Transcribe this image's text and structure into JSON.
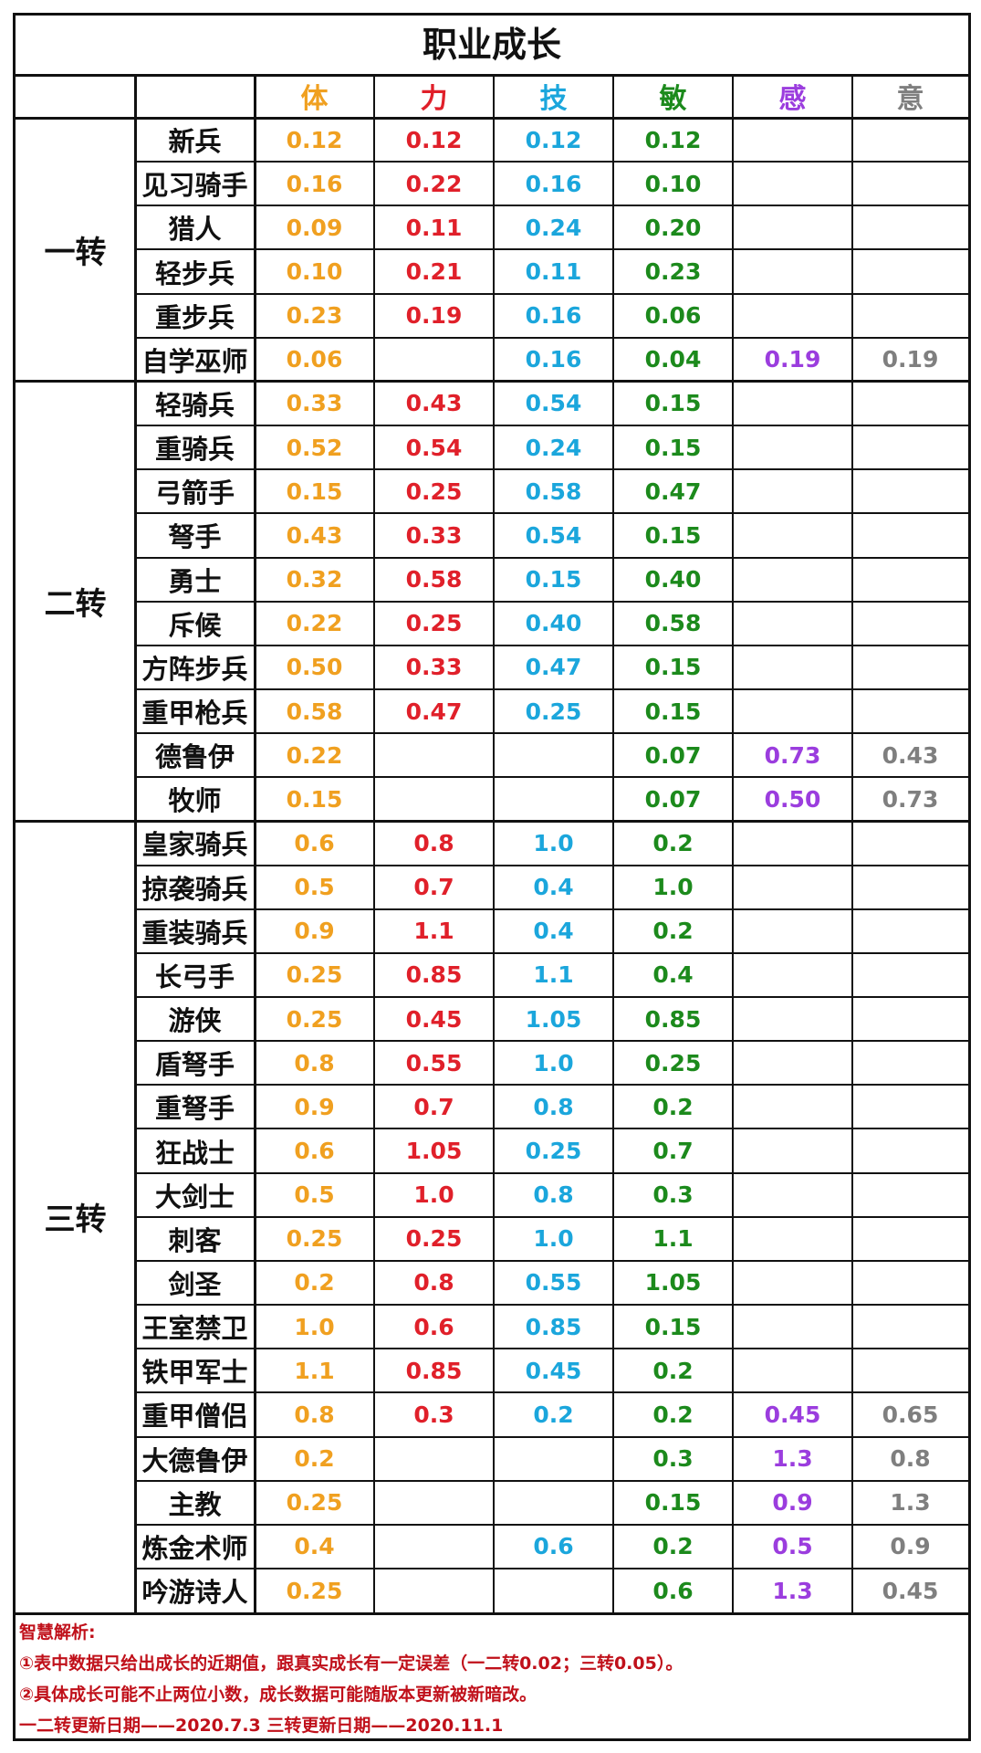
{
  "title": "职业成长",
  "columns": [
    {
      "label": "体",
      "color": "#f0a020"
    },
    {
      "label": "力",
      "color": "#e0202a"
    },
    {
      "label": "技",
      "color": "#1ba6dc"
    },
    {
      "label": "敏",
      "color": "#1c8a1c"
    },
    {
      "label": "感",
      "color": "#9b3dde"
    },
    {
      "label": "意",
      "color": "#7f7f7f"
    }
  ],
  "groups": [
    {
      "name": "一转",
      "rows": [
        {
          "job": "新兵",
          "values": [
            "0.12",
            "0.12",
            "0.12",
            "0.12",
            "",
            ""
          ]
        },
        {
          "job": "见习骑手",
          "values": [
            "0.16",
            "0.22",
            "0.16",
            "0.10",
            "",
            ""
          ]
        },
        {
          "job": "猎人",
          "values": [
            "0.09",
            "0.11",
            "0.24",
            "0.20",
            "",
            ""
          ]
        },
        {
          "job": "轻步兵",
          "values": [
            "0.10",
            "0.21",
            "0.11",
            "0.23",
            "",
            ""
          ]
        },
        {
          "job": "重步兵",
          "values": [
            "0.23",
            "0.19",
            "0.16",
            "0.06",
            "",
            ""
          ]
        },
        {
          "job": "自学巫师",
          "values": [
            "0.06",
            "",
            "0.16",
            "0.04",
            "0.19",
            "0.19"
          ]
        }
      ]
    },
    {
      "name": "二转",
      "rows": [
        {
          "job": "轻骑兵",
          "values": [
            "0.33",
            "0.43",
            "0.54",
            "0.15",
            "",
            ""
          ]
        },
        {
          "job": "重骑兵",
          "values": [
            "0.52",
            "0.54",
            "0.24",
            "0.15",
            "",
            ""
          ]
        },
        {
          "job": "弓箭手",
          "values": [
            "0.15",
            "0.25",
            "0.58",
            "0.47",
            "",
            ""
          ]
        },
        {
          "job": "弩手",
          "values": [
            "0.43",
            "0.33",
            "0.54",
            "0.15",
            "",
            ""
          ]
        },
        {
          "job": "勇士",
          "values": [
            "0.32",
            "0.58",
            "0.15",
            "0.40",
            "",
            ""
          ]
        },
        {
          "job": "斥候",
          "values": [
            "0.22",
            "0.25",
            "0.40",
            "0.58",
            "",
            ""
          ]
        },
        {
          "job": "方阵步兵",
          "values": [
            "0.50",
            "0.33",
            "0.47",
            "0.15",
            "",
            ""
          ]
        },
        {
          "job": "重甲枪兵",
          "values": [
            "0.58",
            "0.47",
            "0.25",
            "0.15",
            "",
            ""
          ]
        },
        {
          "job": "德鲁伊",
          "values": [
            "0.22",
            "",
            "",
            "0.07",
            "0.73",
            "0.43"
          ]
        },
        {
          "job": "牧师",
          "values": [
            "0.15",
            "",
            "",
            "0.07",
            "0.50",
            "0.73"
          ]
        }
      ]
    },
    {
      "name": "三转",
      "rows": [
        {
          "job": "皇家骑兵",
          "values": [
            "0.6",
            "0.8",
            "1.0",
            "0.2",
            "",
            ""
          ]
        },
        {
          "job": "掠袭骑兵",
          "values": [
            "0.5",
            "0.7",
            "0.4",
            "1.0",
            "",
            ""
          ]
        },
        {
          "job": "重装骑兵",
          "values": [
            "0.9",
            "1.1",
            "0.4",
            "0.2",
            "",
            ""
          ]
        },
        {
          "job": "长弓手",
          "values": [
            "0.25",
            "0.85",
            "1.1",
            "0.4",
            "",
            ""
          ]
        },
        {
          "job": "游侠",
          "values": [
            "0.25",
            "0.45",
            "1.05",
            "0.85",
            "",
            ""
          ]
        },
        {
          "job": "盾弩手",
          "values": [
            "0.8",
            "0.55",
            "1.0",
            "0.25",
            "",
            ""
          ]
        },
        {
          "job": "重弩手",
          "values": [
            "0.9",
            "0.7",
            "0.8",
            "0.2",
            "",
            ""
          ]
        },
        {
          "job": "狂战士",
          "values": [
            "0.6",
            "1.05",
            "0.25",
            "0.7",
            "",
            ""
          ]
        },
        {
          "job": "大剑士",
          "values": [
            "0.5",
            "1.0",
            "0.8",
            "0.3",
            "",
            ""
          ]
        },
        {
          "job": "刺客",
          "values": [
            "0.25",
            "0.25",
            "1.0",
            "1.1",
            "",
            ""
          ]
        },
        {
          "job": "剑圣",
          "values": [
            "0.2",
            "0.8",
            "0.55",
            "1.05",
            "",
            ""
          ]
        },
        {
          "job": "王室禁卫",
          "values": [
            "1.0",
            "0.6",
            "0.85",
            "0.15",
            "",
            ""
          ]
        },
        {
          "job": "铁甲军士",
          "values": [
            "1.1",
            "0.85",
            "0.45",
            "0.2",
            "",
            ""
          ]
        },
        {
          "job": "重甲僧侣",
          "values": [
            "0.8",
            "0.3",
            "0.2",
            "0.2",
            "0.45",
            "0.65"
          ]
        },
        {
          "job": "大德鲁伊",
          "values": [
            "0.2",
            "",
            "",
            "0.3",
            "1.3",
            "0.8"
          ]
        },
        {
          "job": "主教",
          "values": [
            "0.25",
            "",
            "",
            "0.15",
            "0.9",
            "1.3"
          ]
        },
        {
          "job": "炼金术师",
          "values": [
            "0.4",
            "",
            "0.6",
            "0.2",
            "0.5",
            "0.9"
          ]
        },
        {
          "job": "吟游诗人",
          "values": [
            "0.25",
            "",
            "",
            "0.6",
            "1.3",
            "0.45"
          ]
        }
      ]
    }
  ],
  "notes": {
    "heading": "智慧解析:",
    "line1": "①表中数据只给出成长的近期值，跟真实成长有一定误差（一二转0.02；三转0.05）。",
    "line2": "②具体成长可能不止两位小数，成长数据可能随版本更新被新暗改。",
    "line3": "一二转更新日期——2020.7.3 三转更新日期——2020.11.1"
  },
  "colors": {
    "border": "#111111",
    "notes": "#c0101a"
  }
}
